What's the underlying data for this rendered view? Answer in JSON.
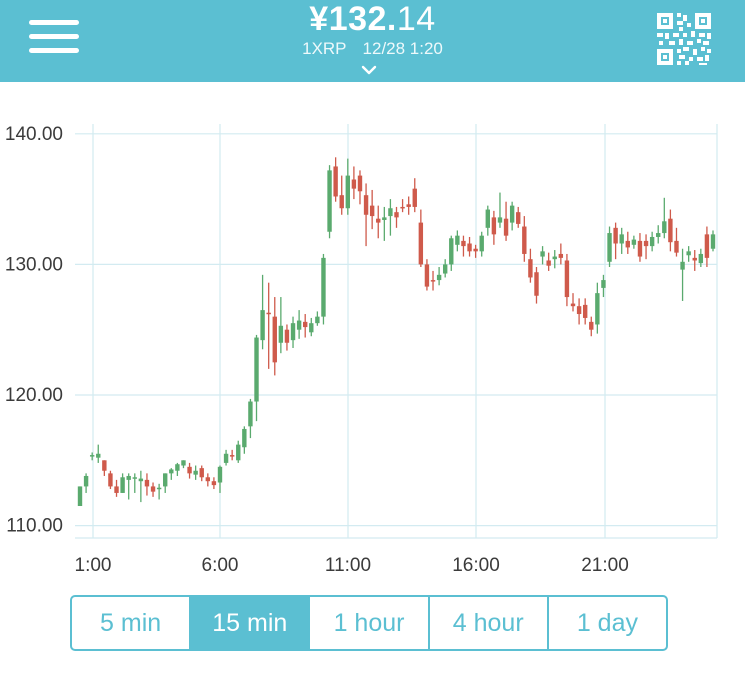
{
  "header": {
    "price_main": "¥132.",
    "price_decimals": "14",
    "pair": "1XRP",
    "datetime": "12/28 1:20",
    "menu_icon": "hamburger-menu-icon",
    "expand_icon": "chevron-down-icon",
    "qr_icon": "qr-code-icon",
    "background_color": "#5bbfd2"
  },
  "chart_data": {
    "type": "candlestick",
    "y_ticks": [
      "140.00",
      "130.00",
      "120.00",
      "110.00"
    ],
    "x_ticks": [
      "1:00",
      "6:00",
      "11:00",
      "16:00",
      "21:00"
    ],
    "ylim": [
      109,
      141
    ],
    "up_color": "#5aaa6e",
    "down_color": "#cf5a4b",
    "grid": true,
    "candles": [
      [
        111.5,
        113,
        111.5,
        113
      ],
      [
        113,
        114,
        112.5,
        113.8
      ],
      [
        115.3,
        115.6,
        115,
        115.4
      ],
      [
        115.2,
        116.2,
        114.8,
        115.5
      ],
      [
        115,
        115,
        113.8,
        114.2
      ],
      [
        114,
        114.2,
        112.8,
        113
      ],
      [
        113,
        113.5,
        112.2,
        112.5
      ],
      [
        112.5,
        114,
        112.5,
        113.7
      ],
      [
        113.5,
        114,
        112,
        113.8
      ],
      [
        113.6,
        114,
        112.5,
        113.7
      ],
      [
        113.4,
        114.2,
        111.8,
        113.6
      ],
      [
        113.5,
        114,
        112.3,
        113
      ],
      [
        113,
        113.3,
        112.2,
        112.6
      ],
      [
        112.8,
        113.2,
        112,
        112.9
      ],
      [
        113,
        114,
        112.5,
        114
      ],
      [
        114,
        114.4,
        113.5,
        114.3
      ],
      [
        114.2,
        114.8,
        113.8,
        114.7
      ],
      [
        114.6,
        115,
        114.4,
        115
      ],
      [
        114.5,
        114.8,
        113.6,
        114
      ],
      [
        113.9,
        114.6,
        113.5,
        114.2
      ],
      [
        114.4,
        114.6,
        113.4,
        113.7
      ],
      [
        113.7,
        114,
        113,
        113.4
      ],
      [
        113.4,
        113.7,
        112.8,
        113.1
      ],
      [
        113.3,
        114.6,
        112.5,
        114.5
      ],
      [
        114.8,
        115.8,
        114.6,
        115.5
      ],
      [
        115.4,
        115.8,
        115,
        115.3
      ],
      [
        115,
        116.5,
        114.8,
        116.2
      ],
      [
        116,
        117.6,
        115.5,
        117.4
      ],
      [
        117.6,
        119.7,
        116.7,
        119.5
      ],
      [
        119.5,
        124.6,
        118,
        124.4
      ],
      [
        124.2,
        129.2,
        123.5,
        126.5
      ],
      [
        126.3,
        128.6,
        122,
        126.2
      ],
      [
        126,
        127.5,
        121.5,
        122.5
      ],
      [
        124,
        127.5,
        123.2,
        125.3
      ],
      [
        125,
        125.4,
        123.4,
        124
      ],
      [
        124.2,
        126,
        123.6,
        125.5
      ],
      [
        125,
        126.5,
        124.3,
        125.7
      ],
      [
        125.6,
        126.2,
        124.4,
        125.2
      ],
      [
        124.8,
        125.9,
        124.5,
        125.5
      ],
      [
        125.5,
        126.4,
        125.3,
        126
      ],
      [
        126,
        130.8,
        125.4,
        130.5
      ],
      [
        132.5,
        137.6,
        132,
        137.2
      ],
      [
        137.5,
        138.2,
        134.8,
        135.2
      ],
      [
        135.3,
        136.8,
        133.8,
        134.3
      ],
      [
        134.3,
        138.1,
        133.8,
        136.8
      ],
      [
        136.5,
        137.5,
        135,
        135.8
      ],
      [
        136.8,
        137.2,
        134.6,
        135.6
      ],
      [
        135.3,
        136.2,
        131.4,
        133.8
      ],
      [
        134.5,
        135.7,
        132.7,
        133.7
      ],
      [
        133.5,
        134.5,
        132,
        133.2
      ],
      [
        133.4,
        134.4,
        131.8,
        133.6
      ],
      [
        133.7,
        135,
        132.2,
        134.3
      ],
      [
        134,
        134.4,
        132.8,
        133.6
      ],
      [
        134.4,
        135,
        134,
        134.3
      ],
      [
        134.6,
        135.2,
        133.8,
        134.4
      ],
      [
        135.8,
        136.6,
        134,
        134.4
      ],
      [
        133.2,
        134.2,
        129.8,
        130
      ],
      [
        130,
        130.4,
        128,
        128.3
      ],
      [
        128.8,
        129.5,
        128,
        128.7
      ],
      [
        128.8,
        129.8,
        128.4,
        129.2
      ],
      [
        129.3,
        130.4,
        129,
        130
      ],
      [
        130,
        132.2,
        129.5,
        132
      ],
      [
        131.5,
        132.6,
        131,
        132.2
      ],
      [
        131.8,
        132.2,
        130.6,
        131.4
      ],
      [
        131.6,
        132.1,
        130.6,
        131
      ],
      [
        131.2,
        131.5,
        130.5,
        131
      ],
      [
        131,
        132.5,
        130.6,
        132.2
      ],
      [
        132.8,
        134.5,
        132.2,
        134.2
      ],
      [
        133.6,
        134.1,
        131.5,
        132.3
      ],
      [
        133.2,
        135.5,
        132.8,
        133.6
      ],
      [
        133.5,
        134.8,
        131.8,
        132.2
      ],
      [
        133.2,
        134.8,
        132.6,
        134.5
      ],
      [
        134,
        134.4,
        132.8,
        133.1
      ],
      [
        132.9,
        133.7,
        130.2,
        130.8
      ],
      [
        130.4,
        131.2,
        128.6,
        129
      ],
      [
        129.4,
        129.8,
        127,
        127.6
      ],
      [
        130.6,
        131.4,
        130,
        131
      ],
      [
        130.3,
        130.9,
        129.5,
        129.9
      ],
      [
        130.4,
        131.1,
        129.7,
        130.6
      ],
      [
        130.8,
        131.6,
        130,
        130.5
      ],
      [
        130.3,
        130.8,
        126.8,
        127.5
      ],
      [
        127,
        127.8,
        126.4,
        126.8
      ],
      [
        126.8,
        127.4,
        125.4,
        126.2
      ],
      [
        126.9,
        127.4,
        125.4,
        125.9
      ],
      [
        125.6,
        126,
        124.5,
        125
      ],
      [
        125.4,
        128.6,
        124.7,
        127.8
      ],
      [
        128.2,
        129.2,
        127.5,
        128.8
      ],
      [
        130.2,
        132.9,
        129.8,
        132.4
      ],
      [
        132.8,
        133.2,
        130.4,
        131.6
      ],
      [
        131.6,
        132.8,
        130.8,
        132.3
      ],
      [
        131.8,
        132.5,
        130.8,
        131.3
      ],
      [
        131.5,
        132.2,
        131.2,
        131.9
      ],
      [
        131.8,
        132.4,
        130.2,
        130.6
      ],
      [
        131.8,
        132.3,
        130.4,
        131.4
      ],
      [
        131.4,
        132.5,
        131,
        132.1
      ],
      [
        132.1,
        133,
        131.6,
        132.4
      ],
      [
        132.4,
        135.1,
        132,
        133.3
      ],
      [
        133.5,
        134.2,
        131,
        131.7
      ],
      [
        131.8,
        132.8,
        130.6,
        130.9
      ],
      [
        129.6,
        131.2,
        127.2,
        130.2
      ],
      [
        130.7,
        131.4,
        130.2,
        131
      ],
      [
        130.5,
        131.1,
        129.5,
        130.3
      ],
      [
        130.1,
        131.2,
        129.8,
        130.8
      ],
      [
        132.3,
        132.9,
        129.8,
        130.5
      ],
      [
        131.2,
        132.6,
        131,
        132.3
      ]
    ]
  },
  "tabs": [
    {
      "label": "5 min",
      "active": false
    },
    {
      "label": "15 min",
      "active": true
    },
    {
      "label": "1 hour",
      "active": false
    },
    {
      "label": "4 hour",
      "active": false
    },
    {
      "label": "1 day",
      "active": false
    }
  ]
}
